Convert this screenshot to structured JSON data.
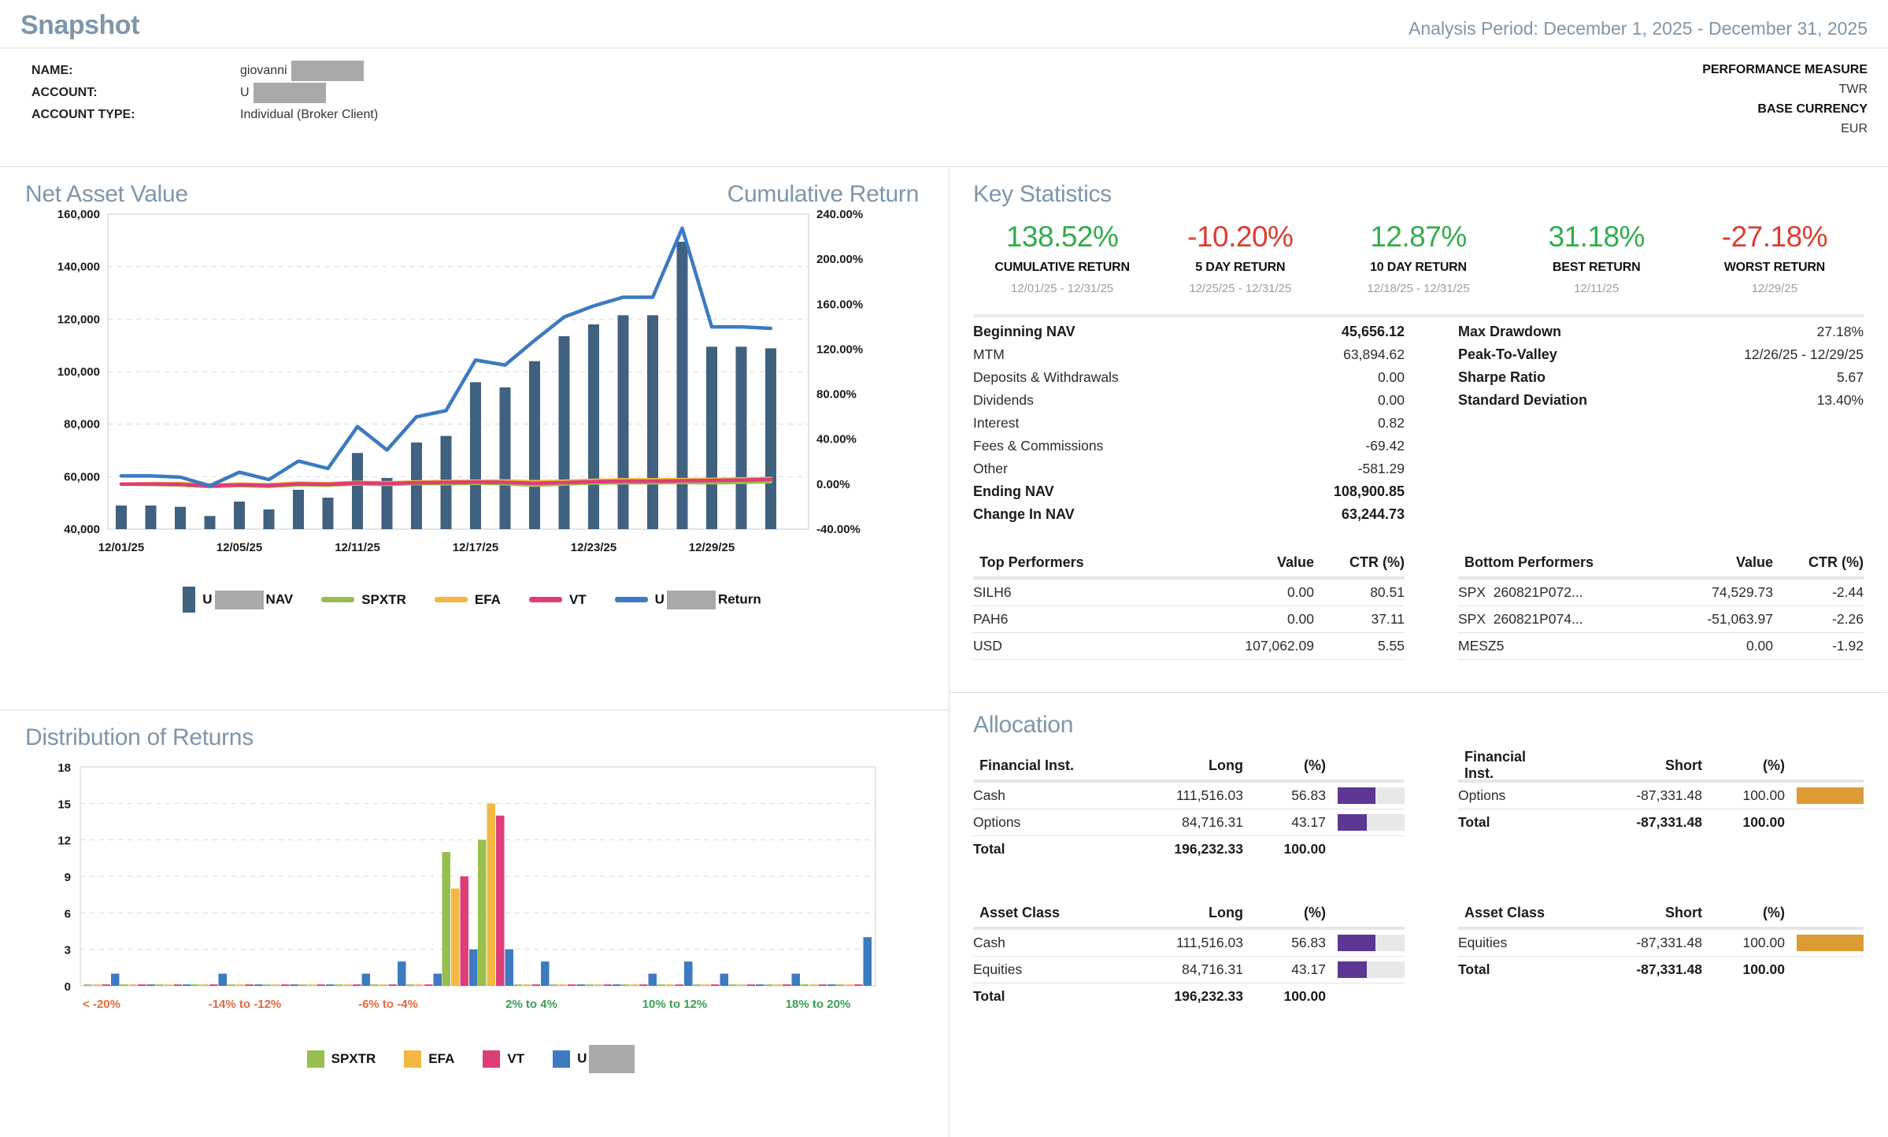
{
  "header": {
    "title": "Snapshot",
    "analysis_period": "Analysis Period: December 1, 2025 - December 31, 2025"
  },
  "account_info": {
    "rows": [
      {
        "label": "NAME:",
        "value": "giovanni",
        "redacted": true
      },
      {
        "label": "ACCOUNT:",
        "value": "U",
        "redacted": true
      },
      {
        "label": "ACCOUNT TYPE:",
        "value": "Individual (Broker Client)",
        "redacted": false
      }
    ],
    "right": [
      {
        "label": "PERFORMANCE MEASURE",
        "value": "TWR"
      },
      {
        "label": "BASE CURRENCY",
        "value": "EUR"
      }
    ]
  },
  "nav_section": {
    "title_left": "Net Asset Value",
    "title_right": "Cumulative Return",
    "legend": [
      {
        "prefix": "U",
        "redacted": true,
        "suffix": "NAV",
        "swatch": "bar",
        "color": "#40617f"
      },
      {
        "suffix": "SPXTR",
        "swatch": "line",
        "color": "#97bf4d"
      },
      {
        "suffix": "EFA",
        "swatch": "line",
        "color": "#f2b843"
      },
      {
        "suffix": "VT",
        "swatch": "line",
        "color": "#dd3d79"
      },
      {
        "prefix": "U",
        "redacted": true,
        "suffix": "Return",
        "swatch": "line",
        "color": "#3c7ac2"
      }
    ]
  },
  "key_statistics": {
    "title": "Key Statistics",
    "summary": [
      {
        "value": "138.52%",
        "label": "CUMULATIVE RETURN",
        "period": "12/01/25 - 12/31/25",
        "color": "#31ad4c"
      },
      {
        "value": "-10.20%",
        "label": "5 DAY RETURN",
        "period": "12/25/25 - 12/31/25",
        "color": "#dc3c31"
      },
      {
        "value": "12.87%",
        "label": "10 DAY RETURN",
        "period": "12/18/25 - 12/31/25",
        "color": "#31ad4c"
      },
      {
        "value": "31.18%",
        "label": "BEST RETURN",
        "period": "12/11/25",
        "color": "#31ad4c"
      },
      {
        "value": "-27.18%",
        "label": "WORST RETURN",
        "period": "12/29/25",
        "color": "#dc3c31"
      }
    ],
    "nav_table": [
      {
        "label": "Beginning NAV",
        "value": "45,656.12",
        "bold": true
      },
      {
        "label": "MTM",
        "value": "63,894.62"
      },
      {
        "label": "Deposits & Withdrawals",
        "value": "0.00"
      },
      {
        "label": "Dividends",
        "value": "0.00"
      },
      {
        "label": "Interest",
        "value": "0.82"
      },
      {
        "label": "Fees & Commissions",
        "value": "-69.42"
      },
      {
        "label": "Other",
        "value": "-581.29"
      },
      {
        "label": "Ending NAV",
        "value": "108,900.85",
        "bold": true
      },
      {
        "label": "Change In NAV",
        "value": "63,244.73",
        "bold": true
      }
    ],
    "risk_table": [
      {
        "label": "Max Drawdown",
        "value": "27.18%"
      },
      {
        "label": "Peak-To-Valley",
        "value": "12/26/25 - 12/29/25"
      },
      {
        "label": "Sharpe Ratio",
        "value": "5.67"
      },
      {
        "label": "Standard Deviation",
        "value": "13.40%"
      }
    ],
    "top_performers": {
      "title": "Top Performers",
      "value_header": "Value",
      "ctr_header": "CTR (%)",
      "rows": [
        {
          "name": "SILH6",
          "value": "0.00",
          "ctr": "80.51"
        },
        {
          "name": "PAH6",
          "value": "0.00",
          "ctr": "37.11"
        },
        {
          "name": "USD",
          "value": "107,062.09",
          "ctr": "5.55"
        }
      ]
    },
    "bottom_performers": {
      "title": "Bottom Performers",
      "value_header": "Value",
      "ctr_header": "CTR (%)",
      "rows": [
        {
          "name": "SPX  260821P072...",
          "value": "74,529.73",
          "ctr": "-2.44"
        },
        {
          "name": "SPX  260821P074...",
          "value": "-51,063.97",
          "ctr": "-2.26"
        },
        {
          "name": "MESZ5",
          "value": "0.00",
          "ctr": "-1.92"
        }
      ]
    }
  },
  "distribution_section": {
    "title": "Distribution of Returns",
    "legend": [
      {
        "suffix": "SPXTR",
        "color": "#97bf4d"
      },
      {
        "suffix": "EFA",
        "color": "#f2b843"
      },
      {
        "suffix": "VT",
        "color": "#dd3d79"
      },
      {
        "prefix": "U",
        "redacted": true,
        "suffix": "",
        "color": "#3c7ac2"
      }
    ]
  },
  "allocation": {
    "title": "Allocation",
    "tables": [
      {
        "name": "Financial Inst.",
        "side": "Long",
        "pct_header": "(%)",
        "bar_color": "#5c3794",
        "rows": [
          {
            "label": "Cash",
            "value": "111,516.03",
            "pct": "56.83",
            "bar": 56.83
          },
          {
            "label": "Options",
            "value": "84,716.31",
            "pct": "43.17",
            "bar": 43.17
          }
        ],
        "total": {
          "label": "Total",
          "value": "196,232.33",
          "pct": "100.00"
        }
      },
      {
        "name": "Financial Inst.",
        "side": "Short",
        "pct_header": "(%)",
        "bar_color": "#dc9b35",
        "rows": [
          {
            "label": "Options",
            "value": "-87,331.48",
            "pct": "100.00",
            "bar": 100
          }
        ],
        "total": {
          "label": "Total",
          "value": "-87,331.48",
          "pct": "100.00"
        }
      },
      {
        "name": "Asset Class",
        "side": "Long",
        "pct_header": "(%)",
        "bar_color": "#5c3794",
        "rows": [
          {
            "label": "Cash",
            "value": "111,516.03",
            "pct": "56.83",
            "bar": 56.83
          },
          {
            "label": "Equities",
            "value": "84,716.31",
            "pct": "43.17",
            "bar": 43.17
          }
        ],
        "total": {
          "label": "Total",
          "value": "196,232.33",
          "pct": "100.00"
        }
      },
      {
        "name": "Asset Class",
        "side": "Short",
        "pct_header": "(%)",
        "bar_color": "#dc9b35",
        "rows": [
          {
            "label": "Equities",
            "value": "-87,331.48",
            "pct": "100.00",
            "bar": 100
          }
        ],
        "total": {
          "label": "Total",
          "value": "-87,331.48",
          "pct": "100.00"
        }
      }
    ]
  },
  "chart_data": [
    {
      "name": "net_asset_value_and_cumulative_return",
      "type": "bar",
      "title": "Net Asset Value / Cumulative Return",
      "x": [
        "12/01/25",
        "12/02/25",
        "12/03/25",
        "12/04/25",
        "12/05/25",
        "12/08/25",
        "12/09/25",
        "12/10/25",
        "12/11/25",
        "12/12/25",
        "12/15/25",
        "12/16/25",
        "12/17/25",
        "12/18/25",
        "12/19/25",
        "12/22/25",
        "12/23/25",
        "12/24/25",
        "12/25/25",
        "12/26/25",
        "12/29/25",
        "12/30/25",
        "12/31/25"
      ],
      "x_tick_indices": [
        0,
        4,
        8,
        12,
        16,
        20
      ],
      "x_tick_labels": [
        "12/01/25",
        "12/05/25",
        "12/11/25",
        "12/17/25",
        "12/23/25",
        "12/29/25"
      ],
      "left_axis": {
        "label": "Net Asset Value",
        "range": [
          40000,
          160000
        ],
        "ticks": [
          "160,000",
          "140,000",
          "120,000",
          "100,000",
          "80,000",
          "60,000",
          "40,000"
        ]
      },
      "right_axis": {
        "label": "Cumulative Return",
        "range": [
          -40,
          240
        ],
        "ticks": [
          "240.00%",
          "200.00%",
          "160.00%",
          "120.00%",
          "80.00%",
          "40.00%",
          "0.00%",
          "-40.00%"
        ]
      },
      "grid": true,
      "legend_position": "bottom",
      "series": [
        {
          "name": "NAV",
          "type": "bar",
          "axis": "left",
          "color": "#40617f",
          "values": [
            49000,
            49000,
            48500,
            45000,
            50500,
            47500,
            55000,
            52000,
            69000,
            59500,
            73000,
            75500,
            96000,
            94000,
            104000,
            113500,
            118000,
            121500,
            121500,
            149500,
            109500,
            109500,
            108901
          ]
        },
        {
          "name": "SPXTR",
          "type": "line",
          "axis": "right",
          "color": "#97bf4d",
          "values": [
            0,
            -0.3,
            -0.8,
            -2.2,
            -1.2,
            -2.0,
            -0.6,
            -1.0,
            0.2,
            -0.3,
            0.6,
            0.3,
            0.8,
            0.4,
            -1.0,
            0.2,
            1.0,
            1.2,
            1.2,
            1.4,
            1.2,
            1.6,
            2.2
          ]
        },
        {
          "name": "EFA",
          "type": "line",
          "axis": "right",
          "color": "#f2b843",
          "values": [
            0,
            0.4,
            0.6,
            -0.8,
            0.2,
            -0.4,
            1.0,
            0.6,
            1.6,
            1.2,
            2.0,
            2.4,
            2.6,
            2.8,
            2.2,
            2.6,
            3.4,
            3.8,
            3.8,
            4.0,
            4.2,
            4.6,
            5.0
          ]
        },
        {
          "name": "VT",
          "type": "line",
          "axis": "right",
          "color": "#dd3d79",
          "values": [
            0,
            0.1,
            -0.2,
            -1.6,
            -0.6,
            -1.2,
            0.2,
            -0.2,
            1.0,
            0.6,
            1.2,
            1.6,
            1.8,
            1.6,
            0.8,
            1.4,
            2.2,
            2.6,
            2.6,
            3.0,
            3.2,
            3.6,
            4.2
          ]
        },
        {
          "name": "Return",
          "type": "line",
          "axis": "right",
          "color": "#3c7ac2",
          "values": [
            7.32,
            7.32,
            6.23,
            -1.44,
            10.61,
            4.04,
            20.47,
            13.9,
            51.13,
            30.32,
            59.89,
            65.37,
            110.27,
            105.89,
            127.79,
            148.6,
            158.46,
            166.13,
            166.13,
            227.45,
            139.84,
            139.84,
            138.52
          ]
        }
      ]
    },
    {
      "name": "distribution_of_returns",
      "type": "bar",
      "title": "Distribution of Returns",
      "categories": [
        "< -20%",
        "-20% to -18%",
        "-18% to -16%",
        "-16% to -14%",
        "-14% to -12%",
        "-12% to -10%",
        "-10% to -8%",
        "-8% to -6%",
        "-6% to -4%",
        "-4% to -2%",
        "-2% to 0%",
        "0% to 2%",
        "2% to 4%",
        "4% to 6%",
        "6% to 8%",
        "8% to 10%",
        "10% to 12%",
        "12% to 14%",
        "14% to 16%",
        "16% to 18%",
        "18% to 20%",
        "> 20%"
      ],
      "ylim": [
        0,
        18
      ],
      "yticks": [
        0,
        3,
        6,
        9,
        12,
        15,
        18
      ],
      "grid": true,
      "legend_position": "bottom",
      "x_ticks": [
        {
          "index": 0,
          "label": "< -20%",
          "color": "#e4683e"
        },
        {
          "index": 4,
          "label": "-14% to -12%",
          "color": "#e4683e"
        },
        {
          "index": 8,
          "label": "-6% to -4%",
          "color": "#e4683e"
        },
        {
          "index": 12,
          "label": "2% to 4%",
          "color": "#3aa055"
        },
        {
          "index": 16,
          "label": "10% to 12%",
          "color": "#3aa055"
        },
        {
          "index": 20,
          "label": "18% to 20%",
          "color": "#3aa055"
        }
      ],
      "series": [
        {
          "name": "SPXTR",
          "color": "#97bf4d",
          "values": [
            0,
            0,
            0,
            0,
            0,
            0,
            0,
            0,
            0,
            0,
            11,
            12,
            0,
            0,
            0,
            0,
            0,
            0,
            0,
            0,
            0,
            0
          ]
        },
        {
          "name": "EFA",
          "color": "#f2b843",
          "values": [
            0,
            0,
            0,
            0,
            0,
            0,
            0,
            0,
            0,
            0,
            8,
            15,
            0,
            0,
            0,
            0,
            0,
            0,
            0,
            0,
            0,
            0
          ]
        },
        {
          "name": "VT",
          "color": "#dd3d79",
          "values": [
            0,
            0,
            0,
            0,
            0,
            0,
            0,
            0,
            0,
            0,
            9,
            14,
            0,
            0,
            0,
            0,
            0,
            0,
            0,
            0,
            0,
            0
          ]
        },
        {
          "name": "U",
          "color": "#3c7ac2",
          "values": [
            1,
            0,
            0,
            1,
            0,
            0,
            0,
            1,
            2,
            1,
            3,
            3,
            2,
            0,
            0,
            1,
            2,
            1,
            0,
            1,
            0,
            4
          ]
        }
      ]
    }
  ]
}
